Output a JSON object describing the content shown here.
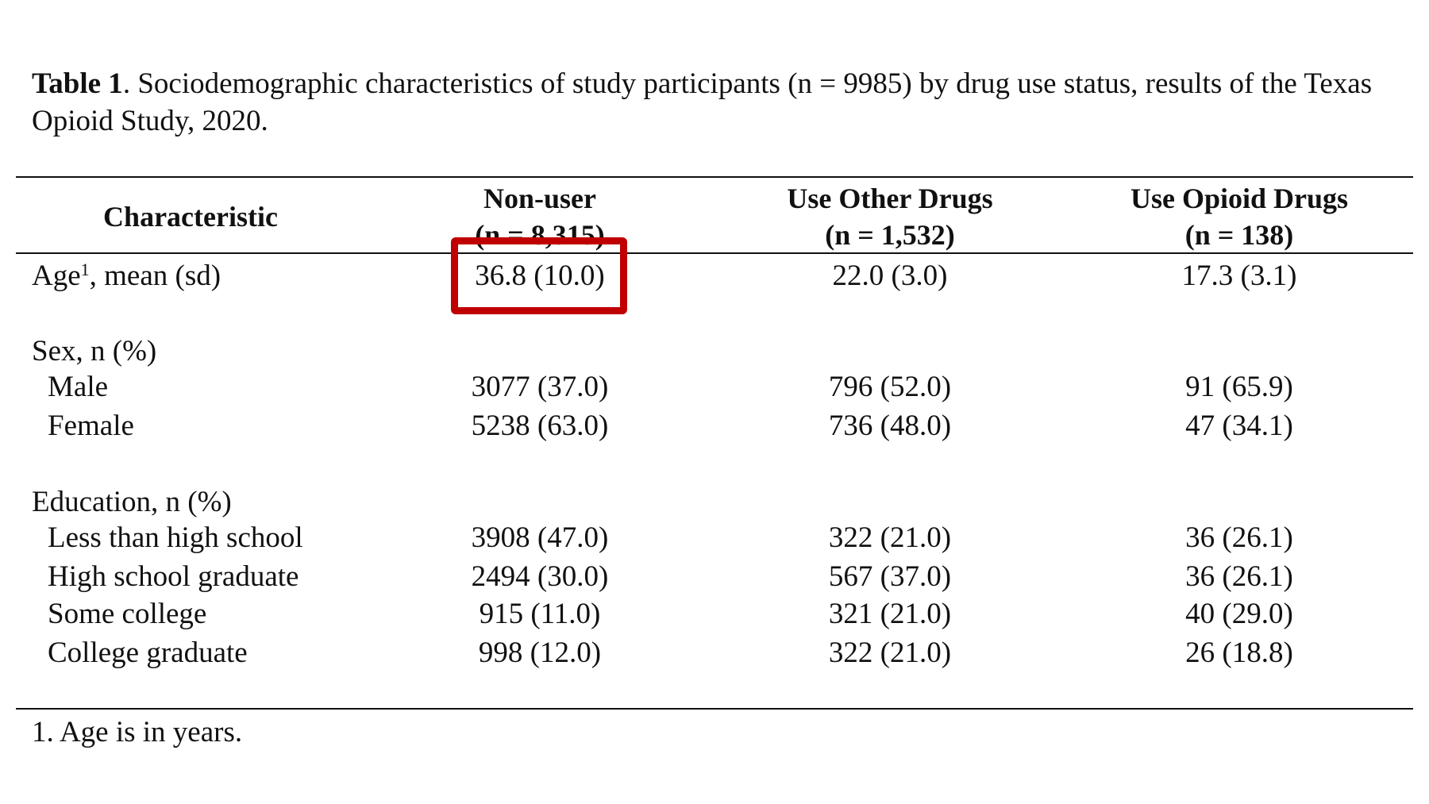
{
  "caption": {
    "label": "Table 1",
    "text": ". Sociodemographic characteristics of study participants (n = 9985) by drug use status, results of the Texas Opioid Study, 2020."
  },
  "table": {
    "header": {
      "characteristic": "Characteristic",
      "columns": [
        {
          "title": "Non-user",
          "n": "(n = 8,315)"
        },
        {
          "title": "Use Other Drugs",
          "n": "(n = 1,532)"
        },
        {
          "title": "Use Opioid Drugs",
          "n": "(n = 138)"
        }
      ]
    },
    "age": {
      "label": "Age",
      "sup": "1",
      "label_rest": ", mean (sd)",
      "values": [
        "36.8 (10.0)",
        "22.0 (3.0)",
        "17.3 (3.1)"
      ]
    },
    "sex": {
      "label": "Sex, n (%)",
      "rows": [
        {
          "label": "Male",
          "values": [
            "3077 (37.0)",
            "796 (52.0)",
            "91 (65.9)"
          ]
        },
        {
          "label": "Female",
          "values": [
            "5238 (63.0)",
            "736 (48.0)",
            "47 (34.1)"
          ]
        }
      ]
    },
    "education": {
      "label": "Education, n (%)",
      "rows": [
        {
          "label": "Less than high school",
          "values": [
            "3908 (47.0)",
            "322 (21.0)",
            "36 (26.1)"
          ]
        },
        {
          "label": "High school graduate",
          "values": [
            "2494 (30.0)",
            "567 (37.0)",
            "36 (26.1)"
          ]
        },
        {
          "label": "Some college",
          "values": [
            "915 (11.0)",
            "321 (21.0)",
            "40 (29.0)"
          ]
        },
        {
          "label": "College graduate",
          "values": [
            "998 (12.0)",
            "322 (21.0)",
            "26 (18.8)"
          ]
        }
      ]
    }
  },
  "footnote": "1. Age is in years.",
  "colors": {
    "highlight": "#c00000",
    "text": "#111111"
  }
}
